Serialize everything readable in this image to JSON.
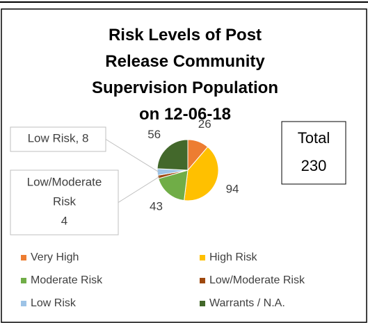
{
  "chart_data": {
    "type": "pie",
    "title": "Risk Levels of Post Release Community Supervision Population on 12-06-18",
    "categories": [
      "Very High",
      "High Risk",
      "Moderate Risk",
      "Low/Moderate Risk",
      "Low Risk",
      "Warrants / N.A."
    ],
    "values": [
      26,
      94,
      43,
      4,
      8,
      56
    ],
    "value_labels": [
      "26",
      "94",
      "43",
      "Low/Moderate\nRisk\n4",
      "Low Risk, 8",
      "56"
    ],
    "colors": [
      "#ed7d31",
      "#ffc000",
      "#70ad47",
      "#9e480e",
      "#9dc3e6",
      "#43682b"
    ],
    "annotation": {
      "label": "Total",
      "value": "230"
    },
    "legend": "bottom"
  }
}
